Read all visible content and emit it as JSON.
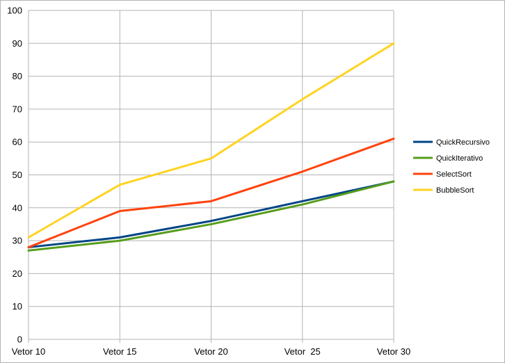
{
  "chart_data": {
    "type": "line",
    "categories": [
      "Vetor 10",
      "Vetor 15",
      "Vetor 20",
      "Vetor  25",
      "Vetor 30"
    ],
    "ylim": [
      0,
      100
    ],
    "yticks": [
      0,
      10,
      20,
      30,
      40,
      50,
      60,
      70,
      80,
      90,
      100
    ],
    "grid": true,
    "legend_position": "right",
    "series": [
      {
        "name": "QuickRecursivo",
        "color": "#004586",
        "values": [
          28,
          31,
          36,
          42,
          48
        ]
      },
      {
        "name": "QuickIterativo",
        "color": "#579d1c",
        "values": [
          27,
          30,
          35,
          41,
          48
        ]
      },
      {
        "name": "SelectSort",
        "color": "#ff420e",
        "values": [
          28,
          39,
          42,
          51,
          61
        ]
      },
      {
        "name": "BubbleSort",
        "color": "#ffd320",
        "values": [
          31,
          47,
          55,
          73,
          90
        ]
      }
    ]
  }
}
